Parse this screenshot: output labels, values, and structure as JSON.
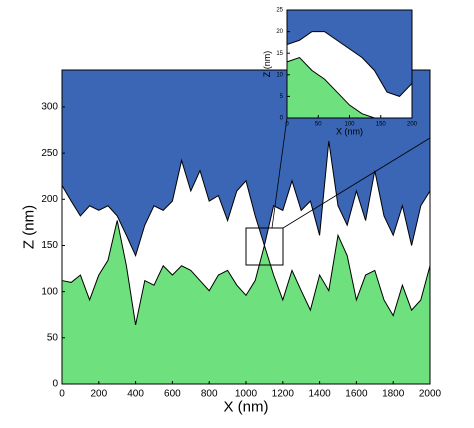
{
  "chart_data": [
    {
      "type": "area",
      "xlabel": "X (nm)",
      "ylabel": "Z (nm)",
      "x": [
        0,
        50,
        100,
        150,
        200,
        250,
        300,
        350,
        400,
        450,
        500,
        550,
        600,
        650,
        700,
        750,
        800,
        850,
        900,
        950,
        1000,
        1050,
        1100,
        1150,
        1200,
        1250,
        1300,
        1350,
        1400,
        1450,
        1500,
        1550,
        1600,
        1650,
        1700,
        1750,
        1800,
        1850,
        1900,
        1950,
        2000
      ],
      "series": [
        {
          "color": "#3a66b5",
          "fill": "above",
          "values": [
            215,
            198,
            182,
            193,
            188,
            193,
            182,
            161,
            139,
            172,
            193,
            188,
            198,
            242,
            209,
            231,
            198,
            204,
            177,
            209,
            220,
            182,
            150,
            193,
            188,
            220,
            188,
            198,
            161,
            263,
            193,
            172,
            209,
            177,
            231,
            182,
            161,
            193,
            150,
            193,
            209
          ]
        },
        {
          "color": "#6fe07e",
          "fill": "below",
          "values": [
            112,
            110,
            118,
            91,
            118,
            134,
            177,
            128,
            64,
            112,
            107,
            128,
            118,
            128,
            123,
            112,
            101,
            118,
            123,
            107,
            96,
            112,
            150,
            118,
            91,
            123,
            101,
            80,
            118,
            101,
            161,
            139,
            91,
            118,
            123,
            91,
            74,
            107,
            80,
            91,
            128
          ]
        }
      ],
      "xlim": [
        0,
        2000
      ],
      "xticks": [
        0,
        200,
        400,
        600,
        800,
        1000,
        1200,
        1400,
        1600,
        1800,
        2000
      ],
      "ylim": [
        0,
        340
      ],
      "yticks": [
        0,
        50,
        100,
        150,
        200,
        250,
        300
      ]
    },
    {
      "type": "area",
      "xlabel": "X (nm)",
      "ylabel": "Z (nm)",
      "x": [
        0,
        20,
        40,
        60,
        80,
        100,
        120,
        140,
        160,
        180,
        200
      ],
      "series": [
        {
          "color": "#3a66b5",
          "fill": "above",
          "values": [
            17,
            18,
            20,
            20,
            18,
            16,
            14,
            11,
            6,
            5,
            8
          ]
        },
        {
          "color": "#6fe07e",
          "fill": "below",
          "values": [
            13,
            14,
            11,
            9,
            6,
            3,
            1,
            0,
            0,
            0,
            0
          ]
        }
      ],
      "xlim": [
        0,
        200
      ],
      "xticks": [
        0,
        50,
        100,
        150,
        200
      ],
      "ylim": [
        0,
        25
      ],
      "yticks": [
        0,
        5,
        10,
        15,
        20,
        25
      ]
    }
  ]
}
